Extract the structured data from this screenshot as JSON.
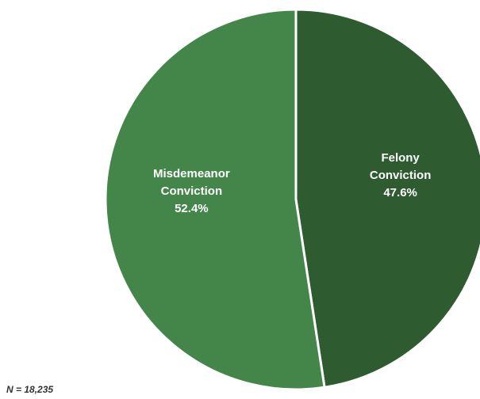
{
  "chart_data": {
    "type": "pie",
    "categories": [
      "Felony Conviction",
      "Misdemeanor Conviction"
    ],
    "values": [
      47.6,
      52.4
    ],
    "value_labels": [
      "47.6%",
      "52.4%"
    ],
    "colors": [
      "#2e5b30",
      "#44864a"
    ],
    "note": "N = 18,235"
  }
}
